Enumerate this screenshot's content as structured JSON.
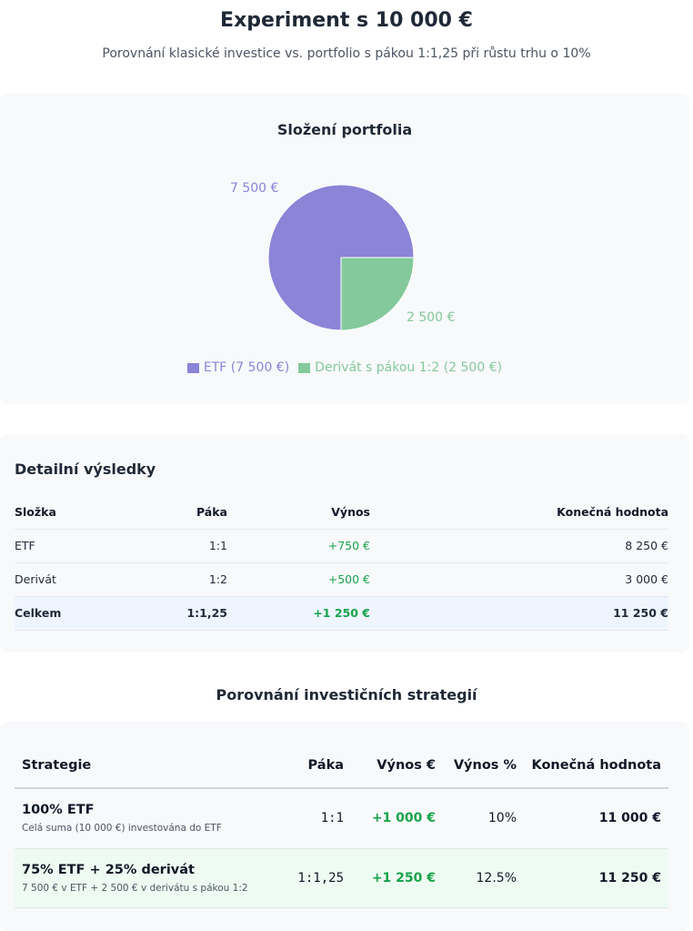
{
  "header": {
    "title": "Experiment s 10 000 €",
    "subtitle": "Porovnání klasické investice vs. portfolio s pákou 1:1,25 při růstu trhu o 10%"
  },
  "colors": {
    "etf": "#8b84d7",
    "derivative": "#84c99b",
    "positive": "#16a34a"
  },
  "chart_data": {
    "type": "pie",
    "title": "Složení portfolia",
    "slices": [
      {
        "name": "ETF (7 500 €)",
        "value": 7500,
        "label": "7 500 €",
        "color": "#8b84d7"
      },
      {
        "name": "Derivát s pákou 1:2 (2 500 €)",
        "value": 2500,
        "label": "2 500 €",
        "color": "#84c99b"
      }
    ],
    "legend": "bottom"
  },
  "detail": {
    "title": "Detailní výsledky",
    "headers": [
      "Složka",
      "Páka",
      "Výnos",
      "Konečná hodnota"
    ],
    "rows": [
      [
        "ETF",
        "1:1",
        "+750 €",
        "8 250 €"
      ],
      [
        "Derivát",
        "1:2",
        "+500 €",
        "3 000 €"
      ],
      [
        "Celkem",
        "1:1,25",
        "+1 250 €",
        "11 250 €"
      ]
    ]
  },
  "strategies": {
    "title": "Porovnání investičních strategií",
    "headers": [
      "Strategie",
      "Páka",
      "Výnos €",
      "Výnos %",
      "Konečná hodnota"
    ],
    "rows": [
      {
        "name": "100% ETF",
        "desc": "Celá suma (10 000 €) investována do ETF",
        "leverage": "1:1",
        "return": "+1 000 €",
        "percent": "10%",
        "value": "11 000 €"
      },
      {
        "name": "75% ETF + 25% derivát",
        "desc": "7 500 € v ETF + 2 500 € v derivátu s pákou 1:2",
        "leverage": "1:1,25",
        "return": "+1 250 €",
        "percent": "12.5%",
        "value": "11 250 €"
      }
    ]
  }
}
